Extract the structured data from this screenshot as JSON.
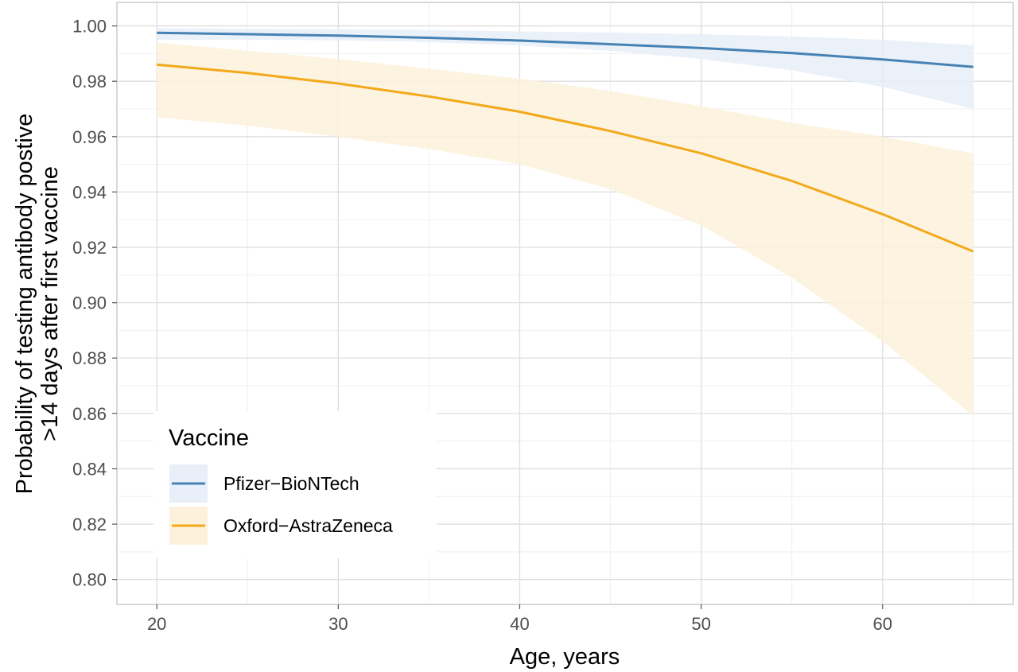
{
  "chart_data": {
    "type": "line",
    "xlabel": "Age, years",
    "ylabel_line1": "Probability of testing antibody postive",
    "ylabel_line2": ">14 days after first vaccine",
    "xlim": [
      17.8,
      67.2
    ],
    "ylim": [
      0.791,
      1.0085
    ],
    "x_ticks": [
      20,
      30,
      40,
      50,
      60
    ],
    "x_tick_labels": [
      "20",
      "30",
      "40",
      "50",
      "60"
    ],
    "y_ticks": [
      0.8,
      0.82,
      0.84,
      0.86,
      0.88,
      0.9,
      0.92,
      0.94,
      0.96,
      0.98,
      1.0
    ],
    "y_tick_labels": [
      "0.80",
      "0.82",
      "0.84",
      "0.86",
      "0.88",
      "0.90",
      "0.92",
      "0.94",
      "0.96",
      "0.98",
      "1.00"
    ],
    "grid": true,
    "legend": {
      "title": "Vaccine",
      "placement": "bottom-left"
    },
    "series": [
      {
        "name": "Pfizer−BioNTech",
        "color": "#4682b4",
        "ribbon_color": "#e8eff8",
        "x": [
          20,
          25,
          30,
          35,
          40,
          45,
          50,
          55,
          60,
          65
        ],
        "y": [
          0.9975,
          0.997,
          0.9965,
          0.9957,
          0.9947,
          0.9934,
          0.992,
          0.9902,
          0.9879,
          0.9852
        ],
        "lower": [
          0.995,
          0.995,
          0.9948,
          0.9942,
          0.9929,
          0.991,
          0.988,
          0.984,
          0.978,
          0.97
        ],
        "upper": [
          0.9992,
          0.999,
          0.9988,
          0.9985,
          0.998,
          0.9976,
          0.997,
          0.9962,
          0.995,
          0.993
        ]
      },
      {
        "name": "Oxford−AstraZeneca",
        "color": "#f2a91a",
        "ribbon_color": "#fdf1dc",
        "x": [
          20,
          25,
          30,
          35,
          40,
          45,
          50,
          55,
          60,
          65
        ],
        "y": [
          0.986,
          0.983,
          0.9792,
          0.9745,
          0.969,
          0.962,
          0.954,
          0.944,
          0.932,
          0.9185
        ],
        "lower": [
          0.967,
          0.964,
          0.96,
          0.9555,
          0.95,
          0.941,
          0.928,
          0.909,
          0.886,
          0.859
        ],
        "upper": [
          0.994,
          0.991,
          0.988,
          0.9845,
          0.981,
          0.9765,
          0.971,
          0.965,
          0.96,
          0.954
        ]
      }
    ]
  }
}
